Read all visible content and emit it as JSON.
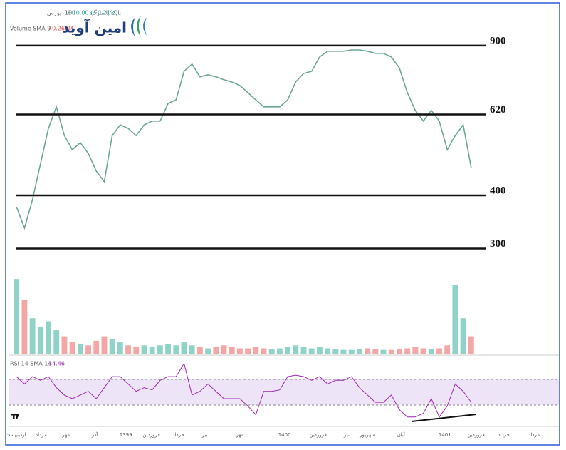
{
  "chart_data": [
    {
      "type": "line",
      "symbol": "بانک پاسارگاد",
      "interval": "1D",
      "exchange": "بورس",
      "change": "+10.00 (+0.21%)",
      "logo": "امین آوید",
      "log_scale": true,
      "ylim": [
        287,
        987
      ],
      "levels": [
        900,
        620,
        400,
        300
      ],
      "color": "#6aa88f",
      "up_color": "#26a69a",
      "down_color": "#ef5350",
      "x": [
        0,
        1,
        2,
        3,
        4,
        5,
        6,
        7,
        8,
        9,
        10,
        11,
        12,
        13,
        14,
        15,
        16,
        17,
        18,
        19,
        20,
        21,
        22,
        23,
        24,
        25,
        26,
        27,
        28,
        29,
        30,
        31,
        32,
        33,
        34,
        35,
        36,
        37,
        38,
        39,
        40,
        41,
        42,
        43,
        44,
        45,
        46,
        47,
        48,
        49,
        50,
        51,
        52,
        53,
        54,
        55,
        56,
        57
      ],
      "xlim": [
        -1,
        68
      ],
      "values": [
        376,
        335,
        391,
        474,
        575,
        646,
        553,
        512,
        532,
        502,
        456,
        431,
        553,
        586,
        575,
        553,
        586,
        598,
        598,
        658,
        671,
        783,
        814,
        760,
        768,
        760,
        748,
        739,
        725,
        698,
        671,
        646,
        646,
        646,
        671,
        739,
        774,
        783,
        846,
        873,
        873,
        873,
        879,
        879,
        873,
        863,
        863,
        846,
        798,
        698,
        634,
        598,
        634,
        598,
        512,
        553,
        586,
        465
      ]
    },
    {
      "type": "bar",
      "title": "Volume SMA 9",
      "last_label": "40.266M",
      "ylim": [
        0,
        300
      ],
      "xlim": [
        -1,
        68
      ],
      "x": [
        0,
        1,
        2,
        3,
        4,
        5,
        6,
        7,
        8,
        9,
        10,
        11,
        12,
        13,
        14,
        15,
        16,
        17,
        18,
        19,
        20,
        21,
        22,
        23,
        24,
        25,
        26,
        27,
        28,
        29,
        30,
        31,
        32,
        33,
        34,
        35,
        36,
        37,
        38,
        39,
        40,
        41,
        42,
        43,
        44,
        45,
        46,
        47,
        48,
        49,
        50,
        51,
        52,
        53,
        54,
        55,
        56,
        57
      ],
      "values": [
        250,
        180,
        120,
        90,
        110,
        80,
        60,
        40,
        35,
        30,
        45,
        60,
        50,
        40,
        30,
        25,
        30,
        25,
        30,
        35,
        30,
        40,
        30,
        25,
        20,
        25,
        30,
        25,
        20,
        20,
        25,
        20,
        18,
        20,
        25,
        30,
        25,
        20,
        25,
        20,
        18,
        15,
        15,
        18,
        20,
        18,
        15,
        15,
        18,
        20,
        25,
        20,
        18,
        20,
        30,
        230,
        120,
        60
      ],
      "up_color": "#8fd3c8",
      "down_color": "#f4a6a4"
    },
    {
      "type": "line",
      "title": "RSI 14 SMA 14",
      "last_value": 34.46,
      "ylim": [
        0,
        100
      ],
      "bands": [
        30,
        70
      ],
      "color": "#9c27b0",
      "band_color": "#ede4f7",
      "xlim": [
        -1,
        68
      ],
      "x": [
        0,
        1,
        2,
        3,
        4,
        5,
        6,
        7,
        8,
        9,
        10,
        11,
        12,
        13,
        14,
        15,
        16,
        17,
        18,
        19,
        20,
        21,
        22,
        23,
        24,
        25,
        26,
        27,
        28,
        29,
        30,
        31,
        32,
        33,
        34,
        35,
        36,
        37,
        38,
        39,
        40,
        41,
        42,
        43,
        44,
        45,
        46,
        47,
        48,
        49,
        50,
        51,
        52,
        53,
        54,
        55,
        56,
        57
      ],
      "values": [
        74.3,
        62.9,
        74.3,
        68.6,
        74.3,
        57.1,
        45.7,
        40,
        45.7,
        51.4,
        40,
        57.1,
        74.3,
        74.3,
        62.9,
        51.4,
        57.1,
        53.7,
        68.6,
        74.3,
        74.3,
        94.9,
        45.7,
        51.4,
        62.9,
        51.4,
        40,
        40,
        40,
        28.6,
        14.9,
        51.4,
        51.4,
        53.7,
        74.3,
        76.6,
        74.3,
        68.6,
        74.3,
        62.9,
        68.6,
        68.6,
        74.3,
        57.1,
        45.7,
        34.3,
        34.3,
        45.7,
        22.9,
        11.4,
        11.4,
        17.1,
        40,
        11.4,
        28.6,
        62.9,
        51.4,
        34.5
      ],
      "xticks": [
        {
          "value": -0.1,
          "label": "اردیبهشت"
        },
        {
          "value": 3.1,
          "label": "مرداد"
        },
        {
          "value": 6.2,
          "label": "مهر"
        },
        {
          "value": 9.8,
          "label": "آذر"
        },
        {
          "value": 13.7,
          "label": "1399"
        },
        {
          "value": 16.9,
          "label": "فروردین"
        },
        {
          "value": 20.3,
          "label": "خرداد"
        },
        {
          "value": 23.6,
          "label": "تیر"
        },
        {
          "value": 28.0,
          "label": "مهر"
        },
        {
          "value": 33.6,
          "label": "1400"
        },
        {
          "value": 37.8,
          "label": "فروردین"
        },
        {
          "value": 41.4,
          "label": "تیر"
        },
        {
          "value": 44.0,
          "label": "شهریور"
        },
        {
          "value": 48.2,
          "label": "آبان"
        },
        {
          "value": 53.7,
          "label": "1401"
        },
        {
          "value": 57.6,
          "label": "فروردین"
        },
        {
          "value": 61.1,
          "label": "خرداد"
        },
        {
          "value": 64.9,
          "label": "مرداد"
        }
      ]
    }
  ]
}
